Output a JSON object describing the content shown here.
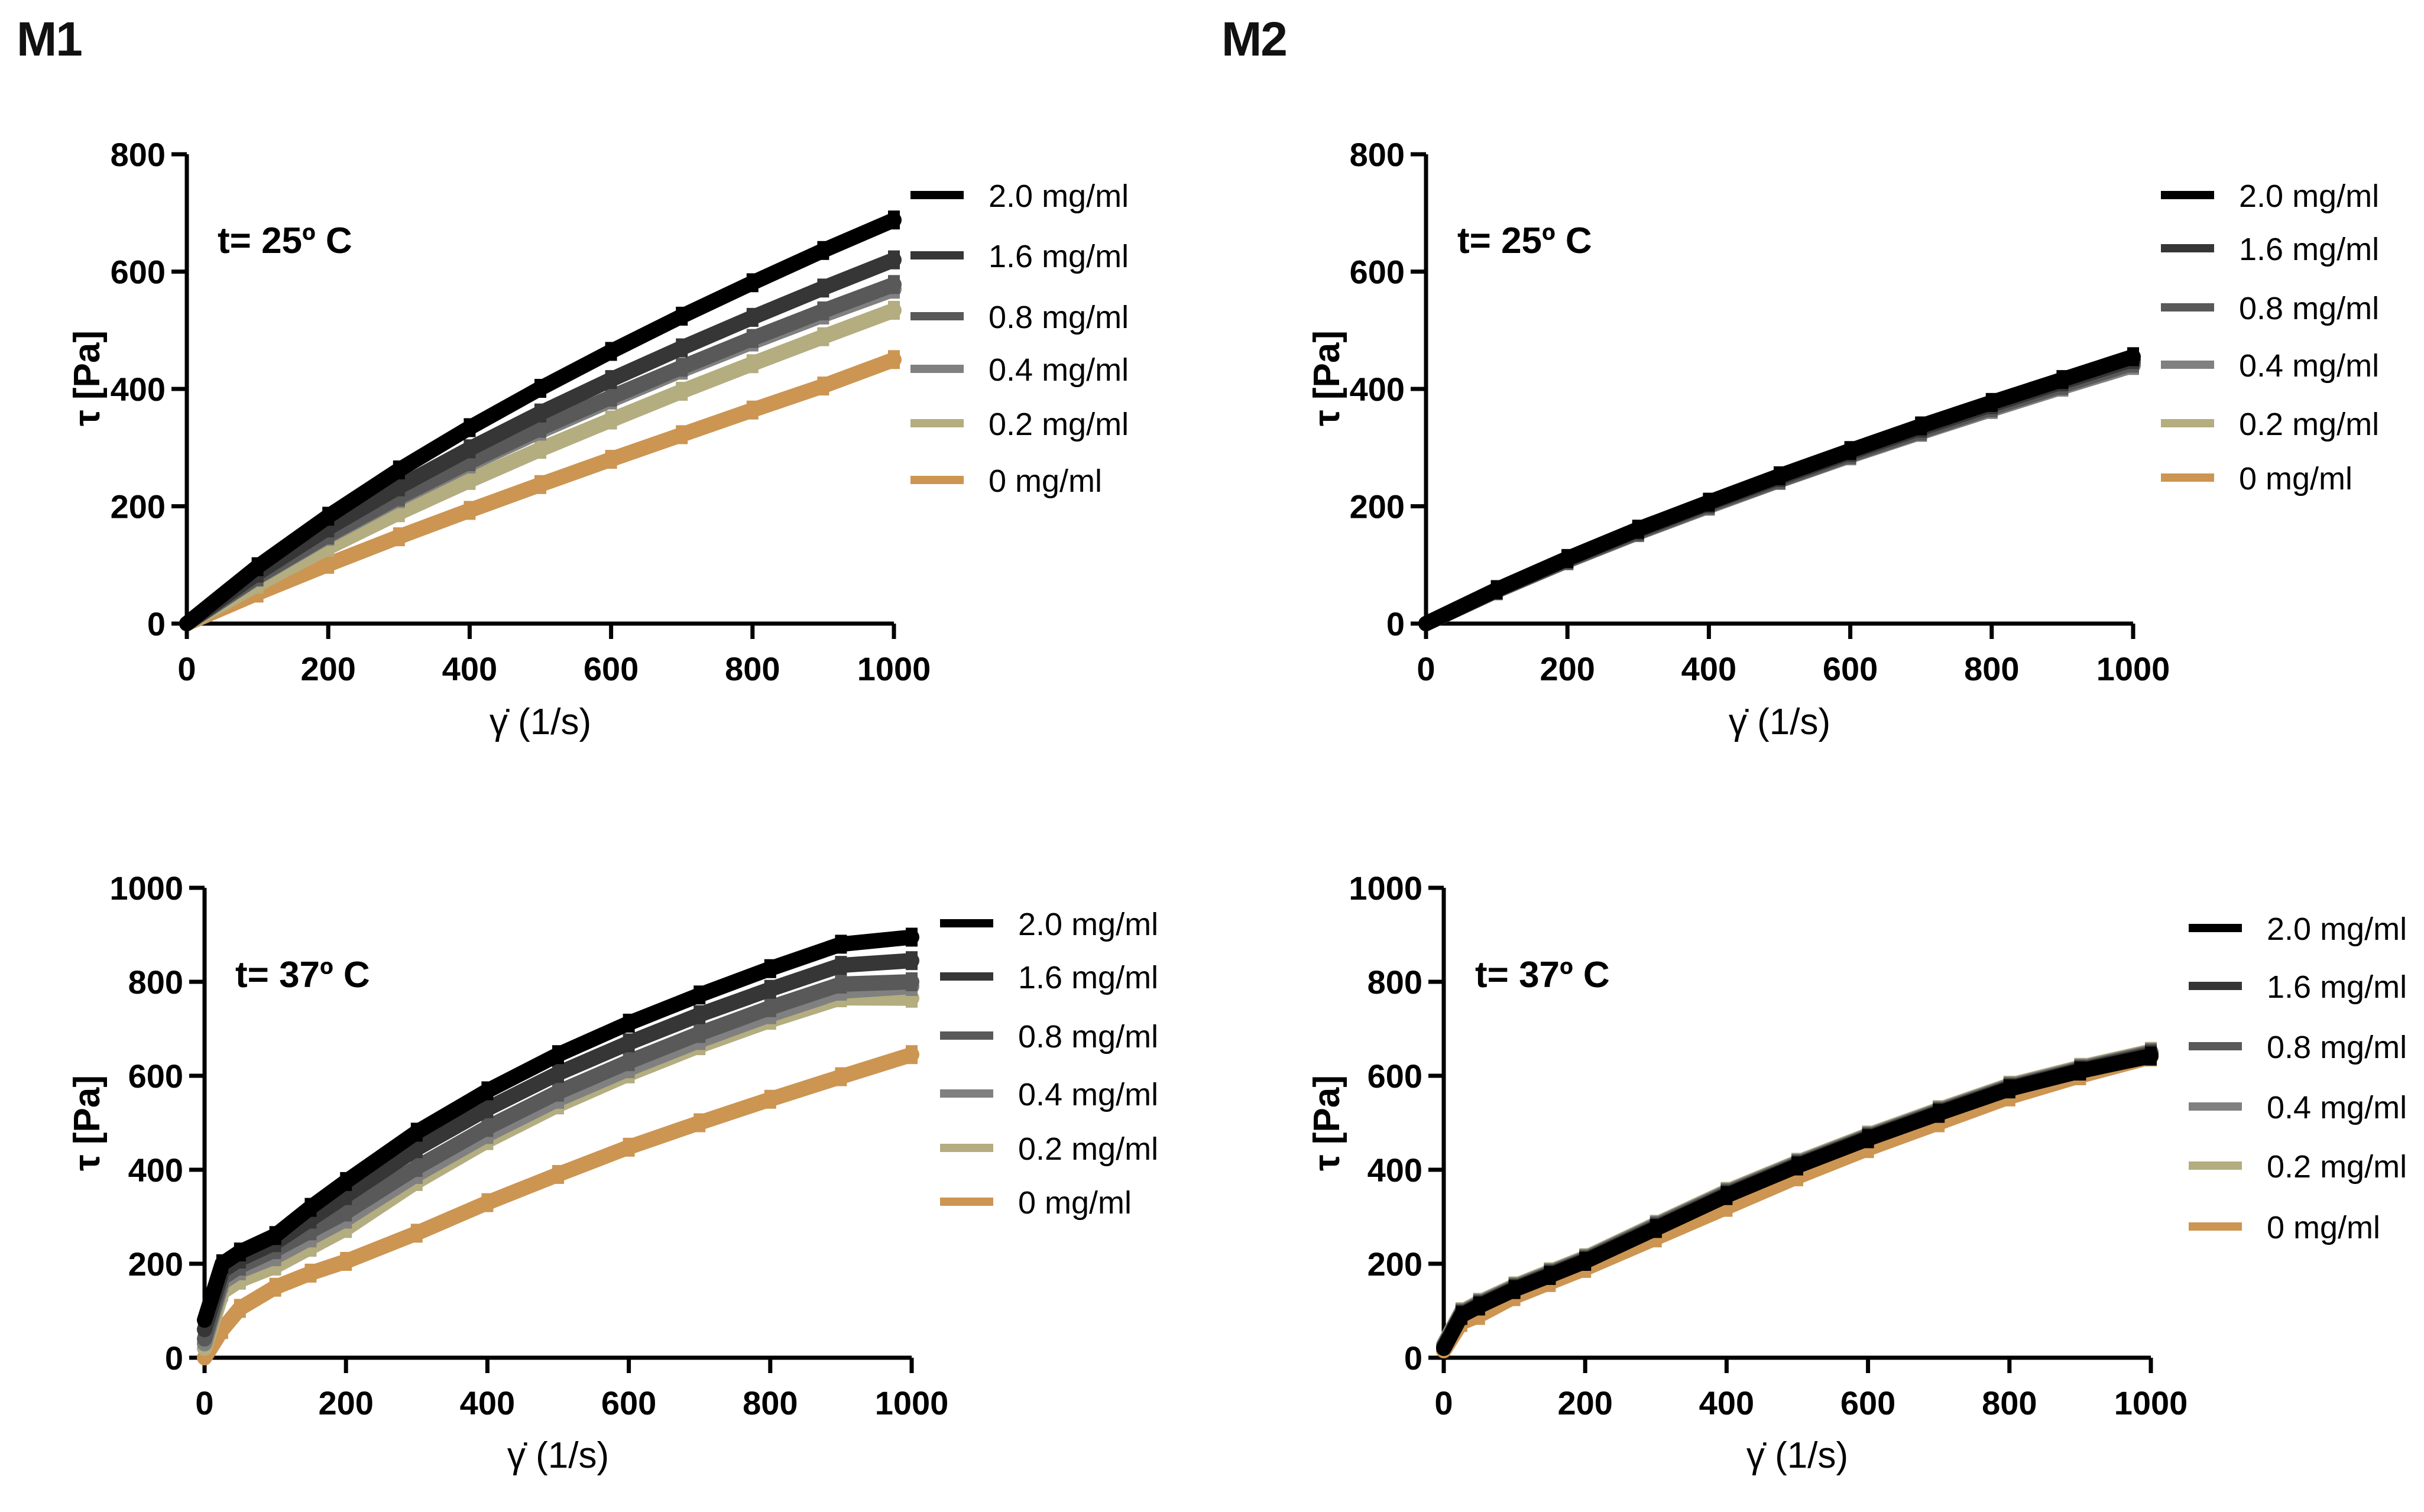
{
  "panel_labels": {
    "left": "M1",
    "right": "M2"
  },
  "legend_labels": [
    "2.0 mg/ml",
    "1.6 mg/ml",
    "0.8 mg/ml",
    "0.4 mg/ml",
    "0.2 mg/ml",
    "0 mg/ml"
  ],
  "colors": {
    "c20": "#000000",
    "c16": "#363636",
    "c08": "#595959",
    "c04": "#808080",
    "c02": "#b3ad80",
    "c0": "#cc9552"
  },
  "chart_data": [
    {
      "type": "line",
      "title": "t= 25º C",
      "panel": "M1",
      "xlabel": "γ̇ (1/s)",
      "ylabel": "τ [Pa]",
      "xlim": [
        0,
        1000
      ],
      "ylim": [
        0,
        800
      ],
      "xticks": [
        0,
        200,
        400,
        600,
        800,
        1000
      ],
      "yticks": [
        0,
        200,
        400,
        600,
        800
      ],
      "x": [
        0,
        100,
        200,
        300,
        400,
        500,
        600,
        700,
        800,
        900,
        1000
      ],
      "series": [
        {
          "name": "2.0 mg/ml",
          "values": [
            0,
            97,
            183,
            262,
            334,
            401,
            464,
            524,
            581,
            636,
            688
          ]
        },
        {
          "name": "1.6 mg/ml",
          "values": [
            0,
            86,
            163,
            233,
            298,
            359,
            416,
            470,
            522,
            572,
            620
          ]
        },
        {
          "name": "0.8 mg/ml",
          "values": [
            0,
            80,
            151,
            216,
            276,
            333,
            386,
            437,
            486,
            533,
            578
          ]
        },
        {
          "name": "0.4 mg/ml",
          "values": [
            0,
            79,
            149,
            213,
            272,
            328,
            381,
            432,
            480,
            526,
            570
          ]
        },
        {
          "name": "0.2 mg/ml",
          "values": [
            0,
            67,
            130,
            189,
            244,
            297,
            347,
            396,
            443,
            489,
            534
          ]
        },
        {
          "name": "0 mg/ml",
          "values": [
            0,
            52,
            101,
            148,
            193,
            237,
            280,
            322,
            364,
            405,
            450
          ]
        }
      ]
    },
    {
      "type": "line",
      "title": "t= 25º C",
      "panel": "M2",
      "xlabel": "γ̇ (1/s)",
      "ylabel": "τ [Pa]",
      "xlim": [
        0,
        1000
      ],
      "ylim": [
        0,
        800
      ],
      "xticks": [
        0,
        200,
        400,
        600,
        800,
        1000
      ],
      "yticks": [
        0,
        200,
        400,
        600,
        800
      ],
      "x": [
        0,
        100,
        200,
        300,
        400,
        500,
        600,
        700,
        800,
        900,
        1000
      ],
      "series": [
        {
          "name": "2.0 mg/ml",
          "values": [
            0,
            58,
            111,
            161,
            207,
            252,
            295,
            337,
            377,
            416,
            455
          ]
        },
        {
          "name": "1.6 mg/ml",
          "values": [
            0,
            57,
            110,
            159,
            205,
            249,
            292,
            333,
            373,
            412,
            450
          ]
        },
        {
          "name": "0.8 mg/ml",
          "values": [
            0,
            56,
            108,
            156,
            202,
            245,
            288,
            328,
            368,
            406,
            444
          ]
        },
        {
          "name": "0.4 mg/ml",
          "values": [
            0,
            56,
            107,
            155,
            200,
            244,
            286,
            326,
            365,
            403,
            440
          ]
        },
        {
          "name": "0.2 mg/ml",
          "values": [
            0,
            56,
            108,
            156,
            201,
            245,
            287,
            327,
            366,
            404,
            442
          ]
        },
        {
          "name": "0 mg/ml",
          "values": [
            0,
            57,
            109,
            158,
            204,
            248,
            290,
            331,
            371,
            409,
            447
          ]
        }
      ]
    },
    {
      "type": "line",
      "title": "t= 37º C",
      "panel": "M1",
      "xlabel": "γ̇ (1/s)",
      "ylabel": "τ [Pa]",
      "xlim": [
        0,
        1000
      ],
      "ylim": [
        0,
        1000
      ],
      "xticks": [
        0,
        200,
        400,
        600,
        800,
        1000
      ],
      "yticks": [
        0,
        200,
        400,
        600,
        800,
        1000
      ],
      "x": [
        0,
        25,
        50,
        100,
        150,
        200,
        300,
        400,
        500,
        600,
        700,
        800,
        900,
        1000
      ],
      "series": [
        {
          "name": "2.0 mg/ml",
          "values": [
            80,
            200,
            225,
            260,
            320,
            375,
            480,
            568,
            645,
            712,
            772,
            828,
            880,
            895
          ]
        },
        {
          "name": "1.6 mg/ml",
          "values": [
            60,
            185,
            210,
            245,
            295,
            345,
            445,
            530,
            605,
            670,
            730,
            784,
            835,
            845
          ]
        },
        {
          "name": "0.8 mg/ml",
          "values": [
            40,
            170,
            195,
            230,
            270,
            310,
            405,
            490,
            565,
            630,
            690,
            745,
            795,
            800
          ]
        },
        {
          "name": "0.4 mg/ml",
          "values": [
            30,
            160,
            185,
            215,
            255,
            295,
            390,
            475,
            550,
            615,
            675,
            730,
            780,
            790
          ]
        },
        {
          "name": "0.2 mg/ml",
          "values": [
            20,
            140,
            165,
            195,
            235,
            275,
            375,
            462,
            538,
            604,
            664,
            718,
            766,
            765
          ]
        },
        {
          "name": "0 mg/ml",
          "values": [
            0,
            60,
            105,
            150,
            180,
            205,
            265,
            330,
            390,
            448,
            500,
            550,
            598,
            645
          ]
        }
      ]
    },
    {
      "type": "line",
      "title": "t= 37º C",
      "panel": "M2",
      "xlabel": "γ̇ (1/s)",
      "ylabel": "τ [Pa]",
      "xlim": [
        0,
        1000
      ],
      "ylim": [
        0,
        1000
      ],
      "xticks": [
        0,
        200,
        400,
        600,
        800,
        1000
      ],
      "yticks": [
        0,
        200,
        400,
        600,
        800,
        1000
      ],
      "x": [
        0,
        25,
        50,
        100,
        150,
        200,
        300,
        400,
        500,
        600,
        700,
        800,
        900,
        1000
      ],
      "series": [
        {
          "name": "2.0 mg/ml",
          "values": [
            20,
            90,
            110,
            145,
            175,
            205,
            275,
            345,
            408,
            466,
            520,
            572,
            610,
            642
          ]
        },
        {
          "name": "1.6 mg/ml",
          "values": [
            22,
            92,
            112,
            147,
            177,
            207,
            277,
            347,
            410,
            468,
            522,
            574,
            612,
            645
          ]
        },
        {
          "name": "0.8 mg/ml",
          "values": [
            24,
            94,
            114,
            149,
            179,
            209,
            280,
            350,
            412,
            470,
            524,
            576,
            614,
            648
          ]
        },
        {
          "name": "0.4 mg/ml",
          "values": [
            26,
            96,
            116,
            151,
            181,
            211,
            282,
            352,
            414,
            472,
            526,
            578,
            616,
            650
          ]
        },
        {
          "name": "0.2 mg/ml",
          "values": [
            28,
            98,
            118,
            153,
            183,
            213,
            284,
            354,
            416,
            474,
            528,
            580,
            618,
            652
          ]
        },
        {
          "name": "0 mg/ml",
          "values": [
            15,
            75,
            90,
            130,
            160,
            190,
            255,
            320,
            385,
            445,
            500,
            555,
            600,
            640
          ]
        }
      ]
    }
  ]
}
